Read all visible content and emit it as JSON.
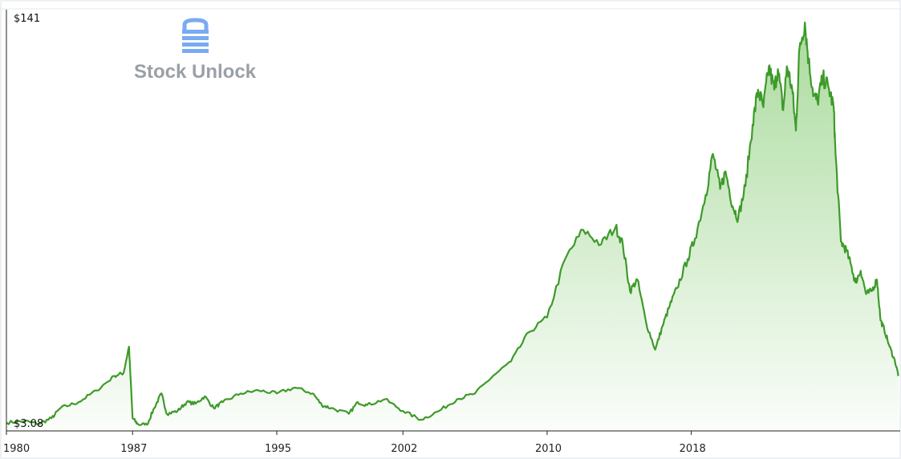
{
  "chart_data": {
    "type": "area",
    "y_max_label": "$141",
    "y_min_label": "$3.08",
    "ylim": [
      3.08,
      141
    ],
    "xlim": [
      1980.0,
      2029.5
    ],
    "x_ticks": [
      "1980",
      "1987",
      "1995",
      "2002",
      "2010",
      "2018"
    ],
    "x_tick_values": [
      1980,
      1987,
      1995,
      2002,
      2010,
      2018
    ],
    "series": [
      {
        "values": [
          [
            1980.0,
            4.0
          ],
          [
            1981.0,
            4.5
          ],
          [
            1981.8,
            3.6
          ],
          [
            1982.5,
            5.5
          ],
          [
            1983.0,
            9.0
          ],
          [
            1984.0,
            11.0
          ],
          [
            1985.0,
            15.0
          ],
          [
            1986.0,
            20.0
          ],
          [
            1986.5,
            21.0
          ],
          [
            1986.8,
            30.0
          ],
          [
            1987.0,
            5.5
          ],
          [
            1987.3,
            3.4
          ],
          [
            1987.8,
            3.3
          ],
          [
            1988.2,
            9.0
          ],
          [
            1988.6,
            14.0
          ],
          [
            1988.9,
            7.0
          ],
          [
            1989.5,
            8.0
          ],
          [
            1990.0,
            11.0
          ],
          [
            1990.5,
            10.5
          ],
          [
            1991.0,
            13.0
          ],
          [
            1991.5,
            9.0
          ],
          [
            1992.0,
            11.0
          ],
          [
            1993.0,
            14.0
          ],
          [
            1994.0,
            15.0
          ],
          [
            1995.0,
            14.0
          ],
          [
            1996.0,
            16.0
          ],
          [
            1997.0,
            14.0
          ],
          [
            1997.5,
            10.0
          ],
          [
            1998.0,
            9.0
          ],
          [
            1999.0,
            7.0
          ],
          [
            1999.5,
            11.0
          ],
          [
            2000.0,
            10.0
          ],
          [
            2001.0,
            12.0
          ],
          [
            2002.0,
            8.0
          ],
          [
            2003.0,
            5.0
          ],
          [
            2004.0,
            8.0
          ],
          [
            2005.0,
            12.0
          ],
          [
            2006.0,
            14.0
          ],
          [
            2007.0,
            20.0
          ],
          [
            2008.0,
            25.0
          ],
          [
            2009.0,
            35.0
          ],
          [
            2010.0,
            40.0
          ],
          [
            2011.0,
            60.0
          ],
          [
            2012.0,
            70.0
          ],
          [
            2013.0,
            65.0
          ],
          [
            2013.8,
            71.0
          ],
          [
            2014.2,
            65.0
          ],
          [
            2014.6,
            49.0
          ],
          [
            2015.0,
            53.0
          ],
          [
            2015.5,
            38.0
          ],
          [
            2016.0,
            29.0
          ],
          [
            2016.4,
            37.0
          ],
          [
            2016.8,
            44.0
          ],
          [
            2017.2,
            50.0
          ],
          [
            2017.8,
            60.0
          ],
          [
            2018.2,
            67.0
          ],
          [
            2018.8,
            82.0
          ],
          [
            2019.2,
            96.0
          ],
          [
            2019.6,
            84.0
          ],
          [
            2019.9,
            90.0
          ],
          [
            2020.3,
            78.0
          ],
          [
            2020.6,
            74.0
          ],
          [
            2021.0,
            85.0
          ],
          [
            2021.4,
            106.0
          ],
          [
            2021.7,
            118.0
          ],
          [
            2022.0,
            112.0
          ],
          [
            2022.3,
            126.0
          ],
          [
            2022.6,
            118.0
          ],
          [
            2022.8,
            125.0
          ],
          [
            2023.1,
            111.0
          ],
          [
            2023.3,
            126.0
          ],
          [
            2023.6,
            118.0
          ],
          [
            2023.8,
            104.0
          ],
          [
            2024.0,
            132.0
          ],
          [
            2024.3,
            141.0
          ],
          [
            2024.5,
            128.0
          ],
          [
            2024.8,
            116.0
          ],
          [
            2025.0,
            114.0
          ],
          [
            2025.3,
            122.0
          ],
          [
            2025.6,
            119.0
          ],
          [
            2025.9,
            112.0
          ],
          [
            2026.0,
            96.0
          ],
          [
            2026.3,
            66.0
          ],
          [
            2026.6,
            63.0
          ],
          [
            2026.9,
            57.0
          ],
          [
            2027.1,
            52.0
          ],
          [
            2027.4,
            56.0
          ],
          [
            2027.7,
            48.0
          ],
          [
            2028.0,
            49.0
          ],
          [
            2028.3,
            53.0
          ],
          [
            2028.5,
            39.0
          ],
          [
            2028.7,
            36.0
          ],
          [
            2029.0,
            30.0
          ],
          [
            2029.3,
            25.0
          ],
          [
            2029.5,
            20.0
          ]
        ]
      }
    ],
    "line_color": "#3e9a2a",
    "fill_color": "#8fcf7e"
  },
  "watermark": {
    "text": "Stock Unlock",
    "icon": "lock-icon",
    "icon_color": "#7aaaf2"
  }
}
